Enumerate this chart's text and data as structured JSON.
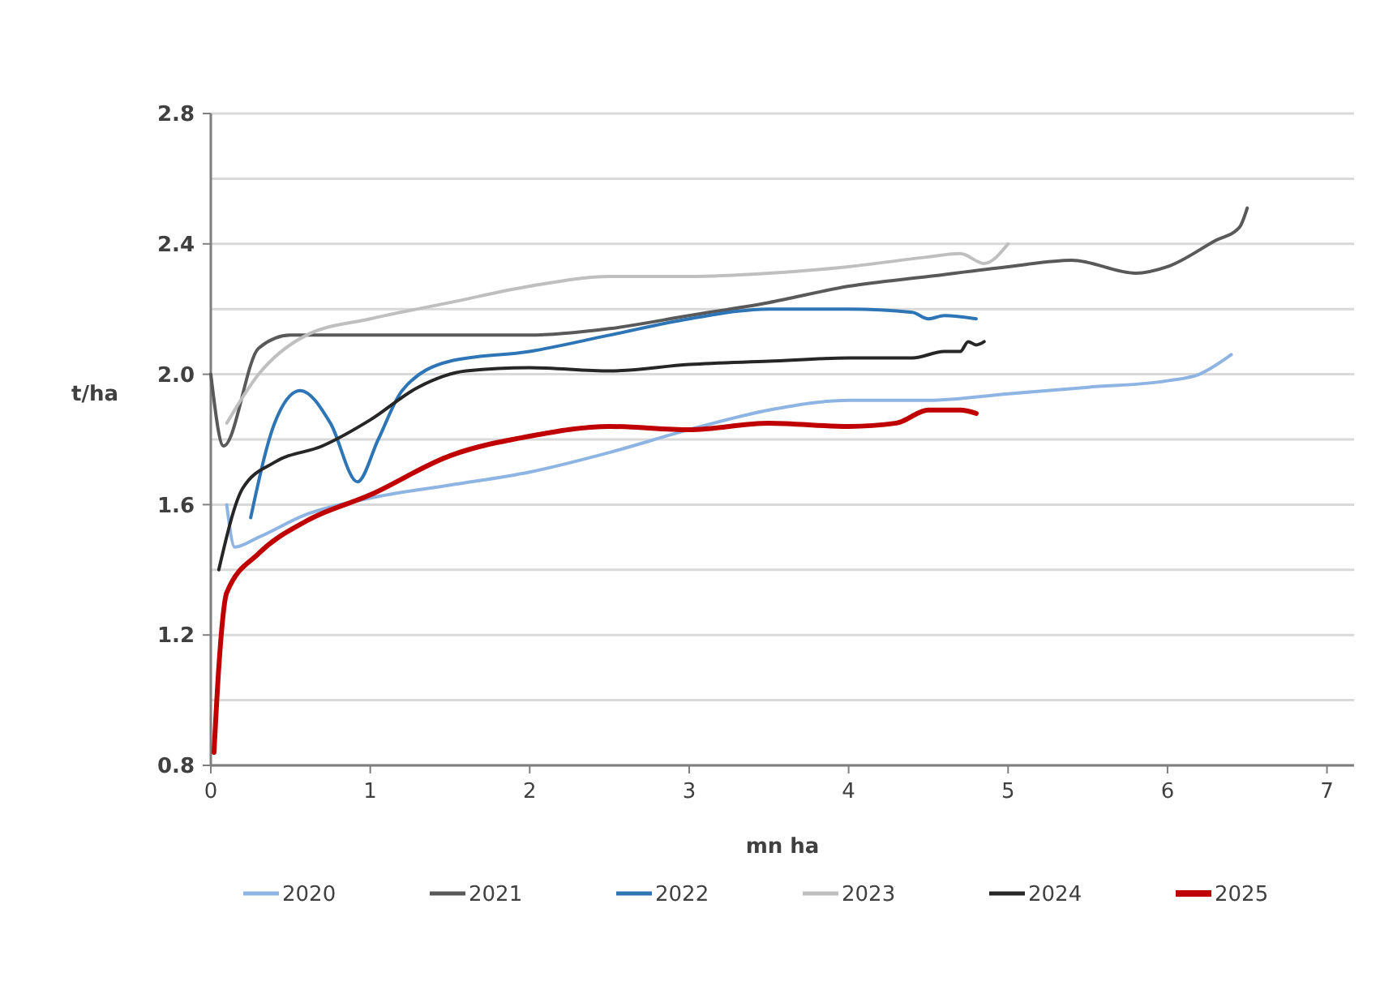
{
  "chart_data": {
    "type": "line",
    "xlabel": "mn ha",
    "ylabel": "t/ha",
    "xlim": [
      0,
      7.17
    ],
    "xticks": [
      0,
      1,
      2,
      3,
      4,
      5,
      6,
      7
    ],
    "ylim": [
      0.8,
      2.8
    ],
    "yticks": [
      {
        "value": 0.8,
        "label": "0.8"
      },
      {
        "value": 1.0,
        "label": null
      },
      {
        "value": 1.2,
        "label": "1.2"
      },
      {
        "value": 1.4,
        "label": null
      },
      {
        "value": 1.6,
        "label": "1.6"
      },
      {
        "value": 1.8,
        "label": null
      },
      {
        "value": 2.0,
        "label": "2.0"
      },
      {
        "value": 2.2,
        "label": null
      },
      {
        "value": 2.4,
        "label": "2.4"
      },
      {
        "value": 2.6,
        "label": null
      },
      {
        "value": 2.8,
        "label": "2.8"
      }
    ],
    "grid": "y",
    "legend": "bottom",
    "line_style": "solid",
    "series": [
      {
        "name": "2020",
        "color": "#8db4e2",
        "x": [
          0.1,
          0.15,
          0.3,
          0.6,
          1,
          1.5,
          2,
          2.5,
          3,
          3.5,
          4,
          4.5,
          5,
          5.5,
          6,
          6.2,
          6.4
        ],
        "values": [
          1.6,
          1.47,
          1.5,
          1.57,
          1.62,
          1.66,
          1.7,
          1.76,
          1.83,
          1.89,
          1.92,
          1.92,
          1.94,
          1.96,
          1.98,
          2.0,
          2.06
        ]
      },
      {
        "name": "2021",
        "color": "#595959",
        "x": [
          0,
          0.08,
          0.3,
          0.5,
          1,
          1.5,
          2,
          2.5,
          3,
          3.5,
          4,
          4.5,
          5,
          5.4,
          5.8,
          6,
          6.3,
          6.45,
          6.5
        ],
        "values": [
          2.0,
          1.78,
          2.08,
          2.12,
          2.12,
          2.12,
          2.12,
          2.14,
          2.18,
          2.22,
          2.27,
          2.3,
          2.33,
          2.35,
          2.31,
          2.33,
          2.41,
          2.45,
          2.51
        ]
      },
      {
        "name": "2022",
        "color": "#2e75b6",
        "x": [
          0.25,
          0.4,
          0.56,
          0.75,
          0.92,
          1.05,
          1.2,
          1.5,
          2,
          2.5,
          3,
          3.5,
          4,
          4.4,
          4.5,
          4.6,
          4.8
        ],
        "values": [
          1.56,
          1.85,
          1.95,
          1.85,
          1.67,
          1.8,
          1.95,
          2.04,
          2.07,
          2.12,
          2.17,
          2.2,
          2.2,
          2.19,
          2.17,
          2.18,
          2.17
        ]
      },
      {
        "name": "2023",
        "color": "#bfbfbf",
        "x": [
          0.1,
          0.3,
          0.6,
          1,
          1.5,
          2,
          2.5,
          3,
          3.5,
          4,
          4.5,
          4.7,
          4.85,
          5.0
        ],
        "values": [
          1.85,
          2.0,
          2.12,
          2.17,
          2.22,
          2.27,
          2.3,
          2.3,
          2.31,
          2.33,
          2.36,
          2.37,
          2.34,
          2.4
        ]
      },
      {
        "name": "2024",
        "color": "#262626",
        "x": [
          0.05,
          0.2,
          0.4,
          0.7,
          1,
          1.3,
          1.6,
          2,
          2.5,
          3,
          3.5,
          4,
          4.4,
          4.6,
          4.7,
          4.75,
          4.8,
          4.85
        ],
        "values": [
          1.4,
          1.65,
          1.73,
          1.78,
          1.86,
          1.96,
          2.01,
          2.02,
          2.01,
          2.03,
          2.04,
          2.05,
          2.05,
          2.07,
          2.07,
          2.1,
          2.09,
          2.1
        ]
      },
      {
        "name": "2025",
        "color": "#c00000",
        "x": [
          0.02,
          0.05,
          0.1,
          0.3,
          0.6,
          1,
          1.5,
          2,
          2.5,
          3,
          3.5,
          4,
          4.3,
          4.5,
          4.7,
          4.8
        ],
        "values": [
          0.84,
          1.1,
          1.33,
          1.45,
          1.55,
          1.63,
          1.75,
          1.81,
          1.84,
          1.83,
          1.85,
          1.84,
          1.85,
          1.89,
          1.89,
          1.88
        ]
      }
    ]
  }
}
